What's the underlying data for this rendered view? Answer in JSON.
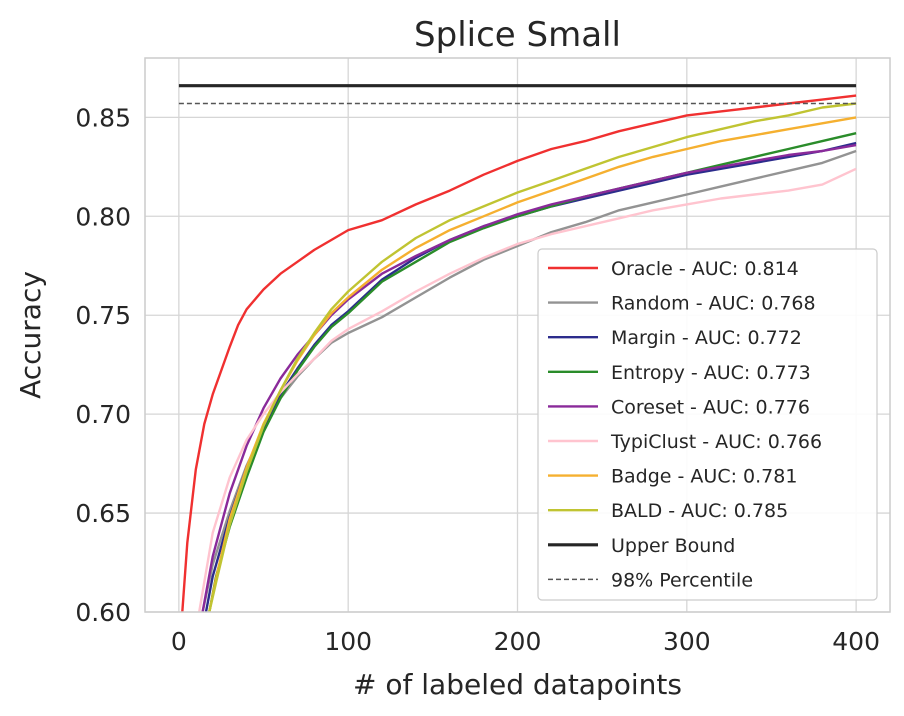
{
  "chart_data": {
    "type": "line",
    "title": "Splice Small",
    "xlabel": "# of labeled datapoints",
    "ylabel": "Accuracy",
    "xlim": [
      -20,
      420
    ],
    "ylim": [
      0.6,
      0.88
    ],
    "xticks": [
      0,
      100,
      200,
      300,
      400
    ],
    "yticks": [
      0.6,
      0.65,
      0.7,
      0.75,
      0.8,
      0.85
    ],
    "xtick_labels": [
      "0",
      "100",
      "200",
      "300",
      "400"
    ],
    "ytick_labels": [
      "0.60",
      "0.65",
      "0.70",
      "0.75",
      "0.80",
      "0.85"
    ],
    "grid": true,
    "legend_position": "lower-right",
    "series": [
      {
        "name": "Oracle - AUC: 0.814",
        "color": "#f03030",
        "points": [
          [
            2,
            0.6
          ],
          [
            5,
            0.635
          ],
          [
            10,
            0.672
          ],
          [
            15,
            0.695
          ],
          [
            20,
            0.71
          ],
          [
            25,
            0.722
          ],
          [
            30,
            0.734
          ],
          [
            35,
            0.745
          ],
          [
            40,
            0.753
          ],
          [
            50,
            0.763
          ],
          [
            60,
            0.771
          ],
          [
            70,
            0.777
          ],
          [
            80,
            0.783
          ],
          [
            90,
            0.788
          ],
          [
            100,
            0.793
          ],
          [
            120,
            0.798
          ],
          [
            140,
            0.806
          ],
          [
            160,
            0.813
          ],
          [
            180,
            0.821
          ],
          [
            200,
            0.828
          ],
          [
            220,
            0.834
          ],
          [
            240,
            0.838
          ],
          [
            260,
            0.843
          ],
          [
            280,
            0.847
          ],
          [
            300,
            0.851
          ],
          [
            320,
            0.853
          ],
          [
            340,
            0.855
          ],
          [
            360,
            0.857
          ],
          [
            380,
            0.859
          ],
          [
            400,
            0.861
          ]
        ]
      },
      {
        "name": "Random - AUC: 0.768",
        "color": "#939393",
        "points": [
          [
            14,
            0.6
          ],
          [
            20,
            0.624
          ],
          [
            30,
            0.651
          ],
          [
            40,
            0.674
          ],
          [
            50,
            0.692
          ],
          [
            60,
            0.708
          ],
          [
            70,
            0.719
          ],
          [
            80,
            0.728
          ],
          [
            90,
            0.736
          ],
          [
            100,
            0.741
          ],
          [
            120,
            0.749
          ],
          [
            140,
            0.759
          ],
          [
            160,
            0.769
          ],
          [
            180,
            0.778
          ],
          [
            200,
            0.785
          ],
          [
            220,
            0.792
          ],
          [
            240,
            0.797
          ],
          [
            260,
            0.803
          ],
          [
            280,
            0.807
          ],
          [
            300,
            0.811
          ],
          [
            320,
            0.815
          ],
          [
            340,
            0.819
          ],
          [
            360,
            0.823
          ],
          [
            380,
            0.827
          ],
          [
            400,
            0.833
          ]
        ]
      },
      {
        "name": "Margin - AUC: 0.772",
        "color": "#2c2c8c",
        "points": [
          [
            16,
            0.6
          ],
          [
            20,
            0.618
          ],
          [
            30,
            0.648
          ],
          [
            40,
            0.673
          ],
          [
            50,
            0.693
          ],
          [
            60,
            0.71
          ],
          [
            70,
            0.723
          ],
          [
            80,
            0.735
          ],
          [
            90,
            0.745
          ],
          [
            100,
            0.752
          ],
          [
            120,
            0.768
          ],
          [
            140,
            0.779
          ],
          [
            160,
            0.788
          ],
          [
            180,
            0.795
          ],
          [
            200,
            0.8
          ],
          [
            220,
            0.805
          ],
          [
            240,
            0.809
          ],
          [
            260,
            0.813
          ],
          [
            280,
            0.817
          ],
          [
            300,
            0.821
          ],
          [
            320,
            0.824
          ],
          [
            340,
            0.827
          ],
          [
            360,
            0.83
          ],
          [
            380,
            0.833
          ],
          [
            400,
            0.837
          ]
        ]
      },
      {
        "name": "Entropy - AUC: 0.773",
        "color": "#2a8c2a",
        "points": [
          [
            18,
            0.6
          ],
          [
            22,
            0.618
          ],
          [
            30,
            0.643
          ],
          [
            40,
            0.668
          ],
          [
            50,
            0.691
          ],
          [
            60,
            0.708
          ],
          [
            70,
            0.722
          ],
          [
            80,
            0.734
          ],
          [
            90,
            0.744
          ],
          [
            100,
            0.751
          ],
          [
            120,
            0.767
          ],
          [
            140,
            0.777
          ],
          [
            160,
            0.787
          ],
          [
            180,
            0.794
          ],
          [
            200,
            0.8
          ],
          [
            220,
            0.805
          ],
          [
            240,
            0.81
          ],
          [
            260,
            0.814
          ],
          [
            280,
            0.818
          ],
          [
            300,
            0.822
          ],
          [
            320,
            0.826
          ],
          [
            340,
            0.83
          ],
          [
            360,
            0.834
          ],
          [
            380,
            0.838
          ],
          [
            400,
            0.842
          ]
        ]
      },
      {
        "name": "Coreset - AUC: 0.776",
        "color": "#8a2a9a",
        "points": [
          [
            14,
            0.6
          ],
          [
            20,
            0.628
          ],
          [
            30,
            0.66
          ],
          [
            40,
            0.684
          ],
          [
            50,
            0.703
          ],
          [
            60,
            0.718
          ],
          [
            70,
            0.73
          ],
          [
            80,
            0.74
          ],
          [
            90,
            0.75
          ],
          [
            100,
            0.758
          ],
          [
            120,
            0.771
          ],
          [
            140,
            0.78
          ],
          [
            160,
            0.788
          ],
          [
            180,
            0.795
          ],
          [
            200,
            0.801
          ],
          [
            220,
            0.806
          ],
          [
            240,
            0.81
          ],
          [
            260,
            0.814
          ],
          [
            280,
            0.818
          ],
          [
            300,
            0.822
          ],
          [
            320,
            0.825
          ],
          [
            340,
            0.828
          ],
          [
            360,
            0.831
          ],
          [
            380,
            0.833
          ],
          [
            400,
            0.836
          ]
        ]
      },
      {
        "name": "TypiClust - AUC: 0.766",
        "color": "#ffc4cf",
        "points": [
          [
            12,
            0.6
          ],
          [
            20,
            0.64
          ],
          [
            30,
            0.668
          ],
          [
            40,
            0.687
          ],
          [
            50,
            0.7
          ],
          [
            60,
            0.711
          ],
          [
            70,
            0.72
          ],
          [
            80,
            0.728
          ],
          [
            90,
            0.737
          ],
          [
            100,
            0.743
          ],
          [
            120,
            0.752
          ],
          [
            140,
            0.762
          ],
          [
            160,
            0.771
          ],
          [
            180,
            0.779
          ],
          [
            200,
            0.786
          ],
          [
            220,
            0.791
          ],
          [
            240,
            0.795
          ],
          [
            260,
            0.799
          ],
          [
            280,
            0.803
          ],
          [
            300,
            0.806
          ],
          [
            320,
            0.809
          ],
          [
            340,
            0.811
          ],
          [
            360,
            0.813
          ],
          [
            380,
            0.816
          ],
          [
            400,
            0.824
          ]
        ]
      },
      {
        "name": "Badge - AUC: 0.781",
        "color": "#f5b030",
        "points": [
          [
            18,
            0.6
          ],
          [
            22,
            0.617
          ],
          [
            30,
            0.647
          ],
          [
            40,
            0.673
          ],
          [
            50,
            0.695
          ],
          [
            60,
            0.712
          ],
          [
            70,
            0.727
          ],
          [
            80,
            0.74
          ],
          [
            90,
            0.751
          ],
          [
            100,
            0.759
          ],
          [
            120,
            0.773
          ],
          [
            140,
            0.784
          ],
          [
            160,
            0.793
          ],
          [
            180,
            0.8
          ],
          [
            200,
            0.807
          ],
          [
            220,
            0.813
          ],
          [
            240,
            0.819
          ],
          [
            260,
            0.825
          ],
          [
            280,
            0.83
          ],
          [
            300,
            0.834
          ],
          [
            320,
            0.838
          ],
          [
            340,
            0.841
          ],
          [
            360,
            0.844
          ],
          [
            380,
            0.847
          ],
          [
            400,
            0.85
          ]
        ]
      },
      {
        "name": "BALD - AUC: 0.785",
        "color": "#c0c432",
        "points": [
          [
            18,
            0.6
          ],
          [
            22,
            0.615
          ],
          [
            30,
            0.644
          ],
          [
            40,
            0.671
          ],
          [
            50,
            0.694
          ],
          [
            60,
            0.712
          ],
          [
            70,
            0.728
          ],
          [
            80,
            0.741
          ],
          [
            90,
            0.753
          ],
          [
            100,
            0.762
          ],
          [
            120,
            0.777
          ],
          [
            140,
            0.789
          ],
          [
            160,
            0.798
          ],
          [
            180,
            0.805
          ],
          [
            200,
            0.812
          ],
          [
            220,
            0.818
          ],
          [
            240,
            0.824
          ],
          [
            260,
            0.83
          ],
          [
            280,
            0.835
          ],
          [
            300,
            0.84
          ],
          [
            320,
            0.844
          ],
          [
            340,
            0.848
          ],
          [
            360,
            0.851
          ],
          [
            380,
            0.855
          ],
          [
            400,
            0.857
          ]
        ]
      },
      {
        "name": "Upper Bound",
        "color": "#262626",
        "points": [
          [
            0,
            0.866
          ],
          [
            400,
            0.866
          ]
        ]
      },
      {
        "name": "98% Percentile",
        "color": "#555555",
        "dashed": true,
        "points": [
          [
            0,
            0.857
          ],
          [
            400,
            0.857
          ]
        ]
      }
    ]
  }
}
